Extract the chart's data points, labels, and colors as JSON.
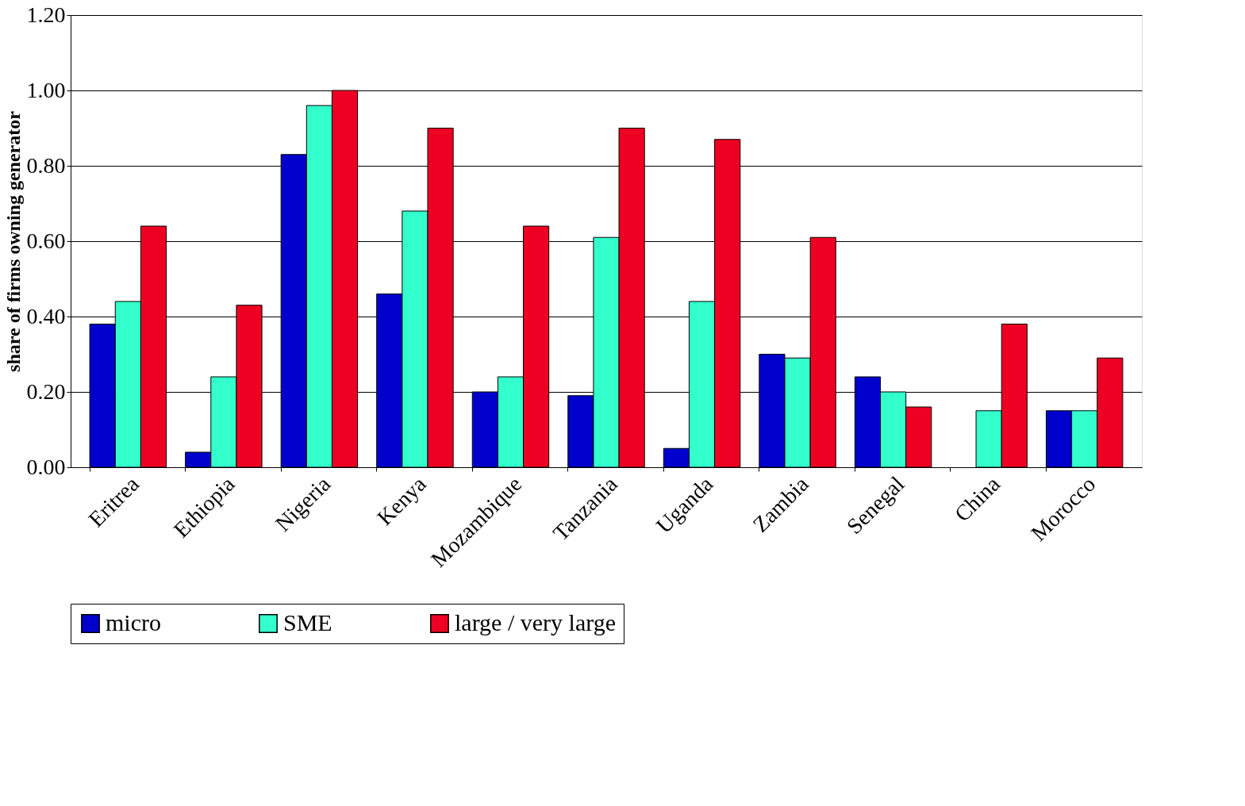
{
  "chart_data": {
    "type": "bar",
    "ylabel": "share of firms owning generator",
    "categories": [
      "Eritrea",
      "Ethiopia",
      "Nigeria",
      "Kenya",
      "Mozambique",
      "Tanzania",
      "Uganda",
      "Zambia",
      "Senegal",
      "China",
      "Morocco"
    ],
    "series": [
      {
        "name": "micro",
        "color": "#0000cc",
        "values": [
          0.38,
          0.04,
          0.83,
          0.46,
          0.2,
          0.19,
          0.05,
          0.3,
          0.24,
          null,
          0.15
        ]
      },
      {
        "name": "SME",
        "color": "#33ffcc",
        "values": [
          0.44,
          0.24,
          0.96,
          0.68,
          0.24,
          0.61,
          0.44,
          0.29,
          0.2,
          0.15,
          0.15
        ]
      },
      {
        "name": "large / very large",
        "color": "#ee0022",
        "values": [
          0.64,
          0.43,
          1.0,
          0.9,
          0.64,
          0.9,
          0.87,
          0.61,
          0.16,
          0.38,
          0.29
        ]
      }
    ],
    "ylim": [
      0,
      1.2
    ],
    "yticks": [
      {
        "value": 0,
        "label": "0.00"
      },
      {
        "value": 0.2,
        "label": "0.20"
      },
      {
        "value": 0.4,
        "label": "0.40"
      },
      {
        "value": 0.6,
        "label": "0.60"
      },
      {
        "value": 0.8,
        "label": "0.80"
      },
      {
        "value": 1.0,
        "label": "1.00"
      },
      {
        "value": 1.2,
        "label": "1.20"
      }
    ],
    "grid": "y",
    "legend": "bottom"
  }
}
